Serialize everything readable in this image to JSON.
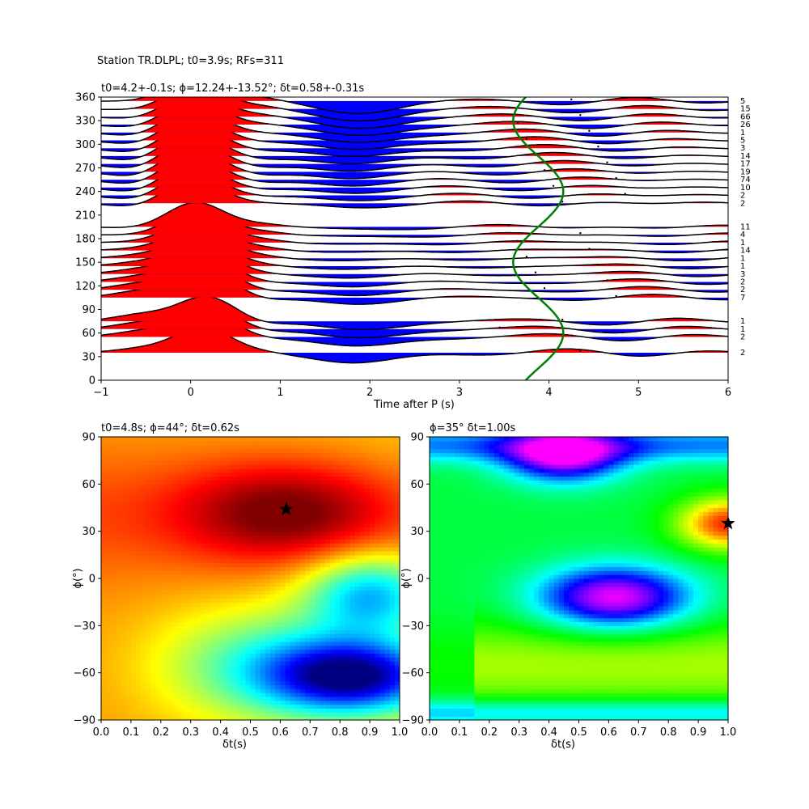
{
  "suptitle": "Station TR.DLPL; t0=3.9s; RFs=311",
  "chart_data": [
    {
      "type": "line",
      "title": "t0=4.2+-0.1s; ϕ=12.24+-13.52°; δt=0.58+-0.31s",
      "xlabel": "Time after P (s)",
      "ylabel": "",
      "xlim": [
        -1,
        6
      ],
      "ylim": [
        0,
        360
      ],
      "xticks": [
        "−1",
        "0",
        "1",
        "2",
        "3",
        "4",
        "5",
        "6"
      ],
      "yticks": [
        "0",
        "30",
        "60",
        "90",
        "120",
        "150",
        "180",
        "210",
        "240",
        "270",
        "300",
        "330",
        "360"
      ],
      "traces": [
        {
          "baz": 35,
          "count": "2"
        },
        {
          "baz": 55,
          "count": "2"
        },
        {
          "baz": 65,
          "count": "1"
        },
        {
          "baz": 75,
          "count": "1"
        },
        {
          "baz": 105,
          "count": "7"
        },
        {
          "baz": 115,
          "count": "2"
        },
        {
          "baz": 125,
          "count": "2"
        },
        {
          "baz": 135,
          "count": "3"
        },
        {
          "baz": 145,
          "count": "1"
        },
        {
          "baz": 155,
          "count": "1"
        },
        {
          "baz": 165,
          "count": "14"
        },
        {
          "baz": 175,
          "count": "1"
        },
        {
          "baz": 185,
          "count": "4"
        },
        {
          "baz": 195,
          "count": "11"
        },
        {
          "baz": 225,
          "count": "2"
        },
        {
          "baz": 235,
          "count": "2"
        },
        {
          "baz": 245,
          "count": "10"
        },
        {
          "baz": 255,
          "count": "74"
        },
        {
          "baz": 265,
          "count": "19"
        },
        {
          "baz": 275,
          "count": "17"
        },
        {
          "baz": 285,
          "count": "14"
        },
        {
          "baz": 295,
          "count": "3"
        },
        {
          "baz": 305,
          "count": "5"
        },
        {
          "baz": 315,
          "count": "1"
        },
        {
          "baz": 325,
          "count": "26"
        },
        {
          "baz": 335,
          "count": "66"
        },
        {
          "baz": 345,
          "count": "15"
        },
        {
          "baz": 355,
          "count": "5"
        }
      ],
      "fill_positive": "#ff0000",
      "fill_negative": "#0000ff",
      "curve_color": "#008000"
    },
    {
      "type": "heatmap",
      "title": "t0=4.8s; ϕ=44°; δt=0.62s",
      "xlabel": "δt(s)",
      "ylabel": "ϕ(°)",
      "xlim": [
        0,
        1
      ],
      "ylim": [
        -90,
        90
      ],
      "xticks": [
        "0.0",
        "0.1",
        "0.2",
        "0.3",
        "0.4",
        "0.5",
        "0.6",
        "0.7",
        "0.8",
        "0.9",
        "1.0"
      ],
      "yticks": [
        "−90",
        "−60",
        "−30",
        "0",
        "30",
        "60",
        "90"
      ],
      "best": {
        "dt": 0.62,
        "phi": 44
      },
      "colormap": "jet"
    },
    {
      "type": "heatmap",
      "title": "ϕ=35° δt=1.00s",
      "xlabel": "δt(s)",
      "ylabel": "ϕ(°)",
      "xlim": [
        0,
        1
      ],
      "ylim": [
        -90,
        90
      ],
      "xticks": [
        "0.0",
        "0.1",
        "0.2",
        "0.3",
        "0.4",
        "0.5",
        "0.6",
        "0.7",
        "0.8",
        "0.9",
        "1.0"
      ],
      "yticks": [
        "−90",
        "−60",
        "−30",
        "0",
        "30",
        "60",
        "90"
      ],
      "best": {
        "dt": 1.0,
        "phi": 35
      },
      "colormap": "hsv"
    }
  ]
}
